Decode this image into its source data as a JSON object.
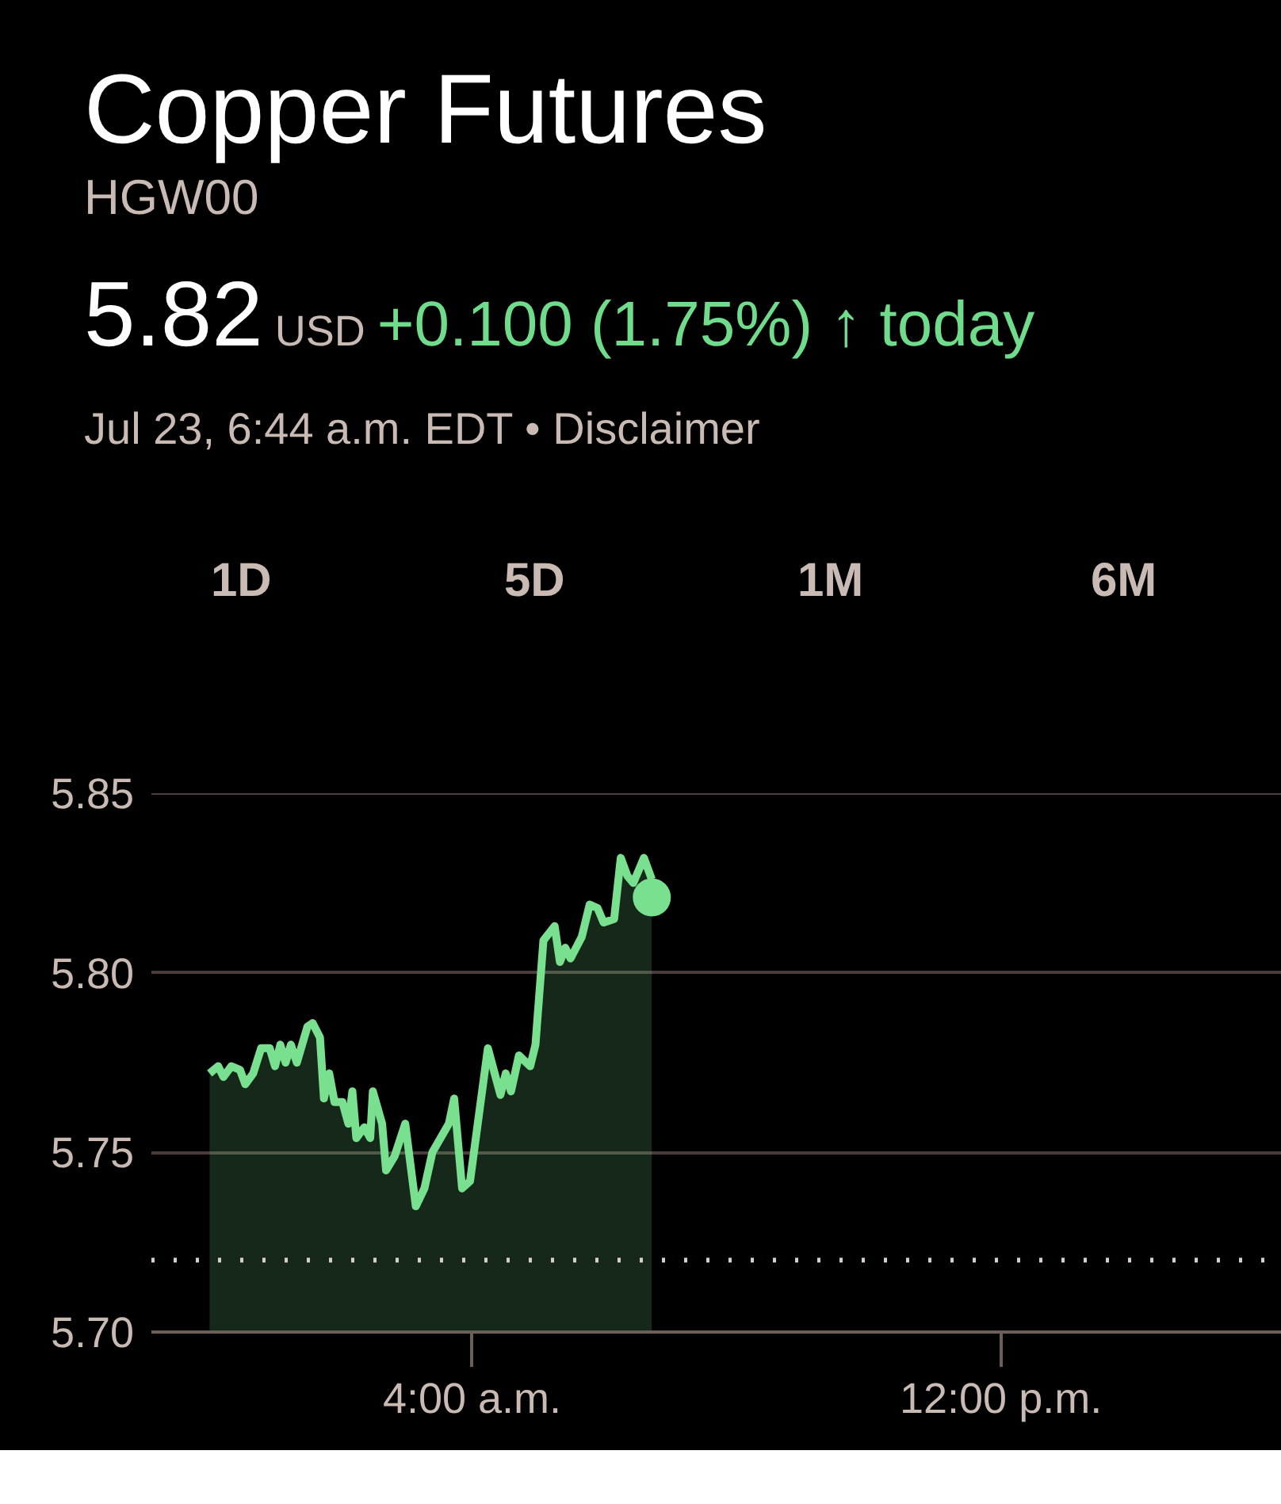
{
  "chart_data": {
    "type": "area",
    "title": "Copper Futures",
    "subtitle": "HGW00",
    "annotations": [
      "5.82",
      "USD",
      "+0.100 (1.75%)",
      "↑ today",
      "Jul 23, 6:44 a.m. EDT • Disclaimer",
      "1D",
      "5D",
      "1M",
      "6M"
    ],
    "series": [
      {
        "color": "#78e08f",
        "x": [
          0.03,
          0.16,
          0.24,
          0.36,
          0.49,
          0.57,
          0.69,
          0.81,
          0.94,
          1.02,
          1.1,
          1.18,
          1.26,
          1.35,
          1.51,
          1.59,
          1.7,
          1.76,
          1.84,
          1.92,
          2.04,
          2.13,
          2.19,
          2.25,
          2.37,
          2.46,
          2.5,
          2.64,
          2.7,
          2.83,
          2.99,
          3.15,
          3.28,
          3.4,
          3.65,
          3.73,
          3.85,
          3.97,
          4.24,
          4.43,
          4.51,
          4.59,
          4.71,
          4.88,
          4.96,
          5.08,
          5.25,
          5.33,
          5.41,
          5.49,
          5.66,
          5.78,
          5.9,
          5.99,
          6.15,
          6.25,
          6.35,
          6.44,
          6.6,
          6.72
        ],
        "values": [
          5.772,
          5.774,
          5.771,
          5.774,
          5.773,
          5.769,
          5.772,
          5.779,
          5.779,
          5.774,
          5.78,
          5.775,
          5.78,
          5.775,
          5.785,
          5.786,
          5.782,
          5.765,
          5.772,
          5.764,
          5.764,
          5.758,
          5.767,
          5.754,
          5.757,
          5.754,
          5.767,
          5.758,
          5.745,
          5.749,
          5.758,
          5.735,
          5.74,
          5.75,
          5.758,
          5.765,
          5.74,
          5.742,
          5.779,
          5.766,
          5.772,
          5.767,
          5.777,
          5.774,
          5.78,
          5.809,
          5.813,
          5.803,
          5.807,
          5.804,
          5.81,
          5.819,
          5.818,
          5.814,
          5.815,
          5.832,
          5.827,
          5.825,
          5.832,
          5.826
        ]
      },
      {
        "type": "scatter",
        "color": "#78e08f",
        "marker": "circle",
        "x": [
          6.72
        ],
        "values": [
          5.821
        ]
      }
    ],
    "xlim": [
      -0.85,
      16.25
    ],
    "xticks": [
      {
        "value": 4,
        "label": "4:00 a.m."
      },
      {
        "value": 12,
        "label": "12:00 p.m."
      }
    ],
    "ylim": [
      5.7,
      5.85
    ],
    "yticks": [
      {
        "value": 5.7,
        "label": "5.70"
      },
      5.75,
      {
        "value": 5.8,
        "label": "5.80"
      },
      5.85
    ],
    "grid": "y",
    "marker": "none",
    "line_style": "solid",
    "ref_lines": [
      {
        "axis": "y",
        "value": 5.72,
        "color": "#d8d0c8",
        "line_style": "dotted"
      }
    ]
  }
}
